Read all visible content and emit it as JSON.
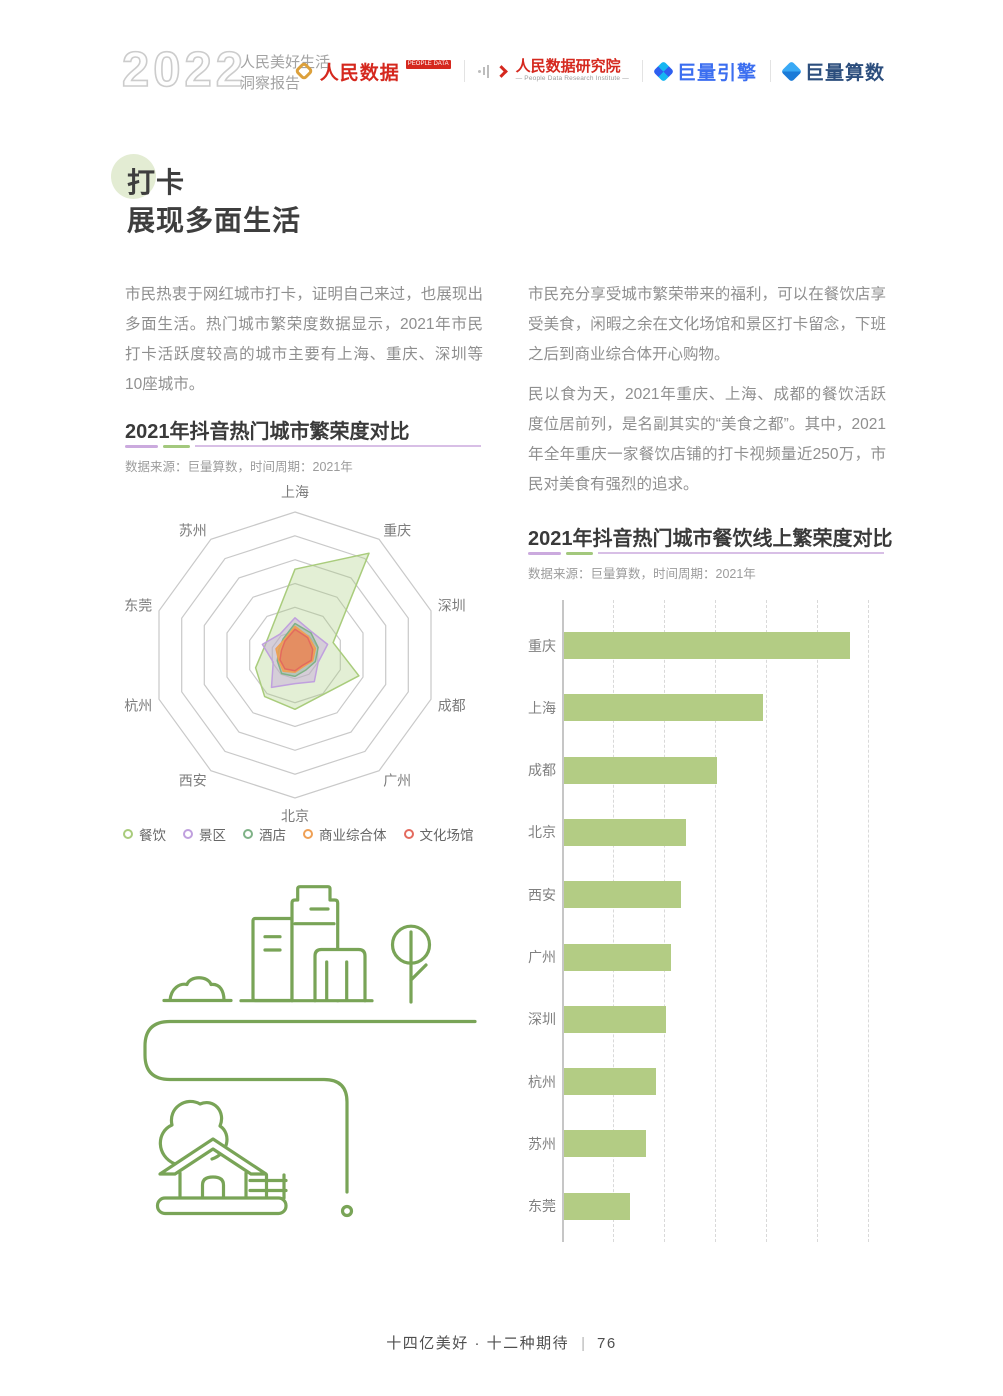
{
  "header": {
    "year": "2022",
    "report_title_line1": "人民美好生活",
    "report_title_line2": "洞察报告",
    "logos": [
      {
        "text": "人民数据",
        "badge": "PEOPLE DATA",
        "color": "#d5281e"
      },
      {
        "text": "人民数据研究院",
        "subtext": "— People Data Research Institute —",
        "color": "#d5281e"
      },
      {
        "text": "巨量引擎",
        "color": "#3b6ef0"
      },
      {
        "text": "巨量算数",
        "color": "#2c4e7d"
      }
    ]
  },
  "section": {
    "title_highlight": "打卡",
    "title_line2": "展现多面生活"
  },
  "paragraphs": {
    "left_1": "市民热衷于网红城市打卡，证明自己来过，也展现出多面生活。热门城市繁荣度数据显示，2021年市民打卡活跃度较高的城市主要有上海、重庆、深圳等10座城市。",
    "right_1": "市民充分享受城市繁荣带来的福利，可以在餐饮店享受美食，闲暇之余在文化场馆和景区打卡留念，下班之后到商业综合体开心购物。",
    "right_2": "民以食为天，2021年重庆、上海、成都的餐饮活跃度位居前列，是名副其实的“美食之都”。其中，2021年全年重庆一家餐饮店铺的打卡视频量近250万，市民对美食有强烈的追求。"
  },
  "chart_data": [
    {
      "type": "radar",
      "title": "2021年抖音热门城市繁荣度对比",
      "source": "数据来源：巨量算数，时间周期：2021年",
      "axes": [
        "上海",
        "重庆",
        "深圳",
        "成都",
        "广州",
        "北京",
        "西安",
        "杭州",
        "东莞",
        "苏州"
      ],
      "rings": 6,
      "scale": [
        0,
        1
      ],
      "grid": "concentric-decagons",
      "legend_position": "bottom",
      "series": [
        {
          "name": "餐饮",
          "color": "#a9cc7c",
          "values": [
            0.6,
            0.88,
            0.28,
            0.47,
            0.34,
            0.38,
            0.36,
            0.29,
            0.22,
            0.26
          ]
        },
        {
          "name": "景区",
          "color": "#c0a0de",
          "values": [
            0.26,
            0.2,
            0.24,
            0.17,
            0.23,
            0.2,
            0.28,
            0.16,
            0.24,
            0.18
          ]
        },
        {
          "name": "酒店",
          "color": "#7fb287",
          "values": [
            0.22,
            0.19,
            0.17,
            0.15,
            0.13,
            0.15,
            0.16,
            0.13,
            0.12,
            0.14
          ]
        },
        {
          "name": "商业综合体",
          "color": "#efa055",
          "values": [
            0.2,
            0.16,
            0.15,
            0.13,
            0.1,
            0.12,
            0.14,
            0.12,
            0.14,
            0.13
          ]
        },
        {
          "name": "文化场馆",
          "color": "#e36a5e",
          "values": [
            0.18,
            0.15,
            0.13,
            0.12,
            0.09,
            0.11,
            0.12,
            0.11,
            0.1,
            0.12
          ]
        }
      ]
    },
    {
      "type": "bar",
      "orientation": "horizontal",
      "title": "2021年抖音热门城市餐饮线上繁荣度对比",
      "source": "数据来源：巨量算数，时间周期：2021年",
      "categories": [
        "重庆",
        "上海",
        "成都",
        "北京",
        "西安",
        "广州",
        "深圳",
        "杭州",
        "苏州",
        "东莞"
      ],
      "values": [
        56,
        39,
        30,
        24,
        23,
        21,
        20,
        18,
        16,
        13
      ],
      "xlim": [
        0,
        63
      ],
      "gridline_step": 10,
      "axis_tick_labels_visible": false,
      "bar_color": "#b3cc84"
    }
  ],
  "accent": {
    "underline_purple": "#cbaade",
    "underline_green": "#a3c87d",
    "title_circle": "#e3ecd3",
    "illustration_stroke": "#79a457"
  },
  "illustration": {
    "name": "city-road-house-line-art"
  },
  "footer": {
    "text": "十四亿美好 · 十二种期待",
    "divider": "|",
    "page_number": "76"
  }
}
